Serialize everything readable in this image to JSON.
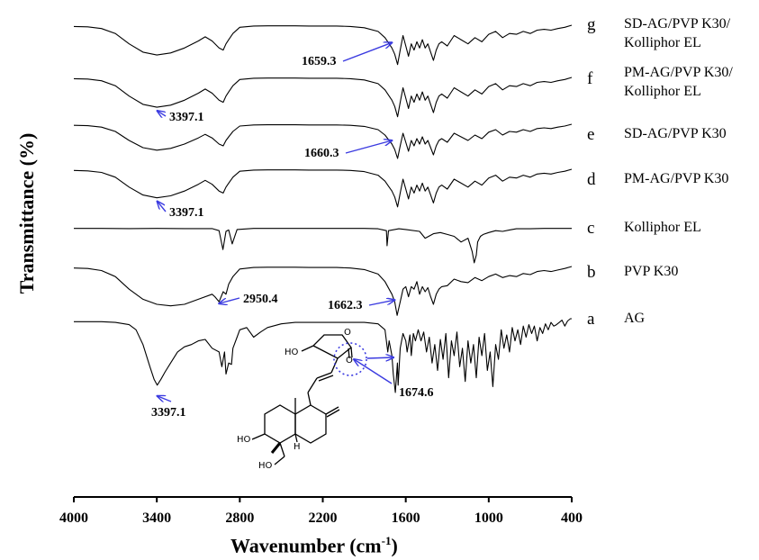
{
  "chart_data": {
    "type": "line",
    "title": "",
    "xlabel_main": "Wavenumber",
    "xlabel_unit": "(cm",
    "xlabel_exp": "-1",
    "xlabel_close": ")",
    "ylabel": "Transmittance (%)",
    "xlim": [
      4000,
      400
    ],
    "xticks": [
      4000,
      3400,
      2800,
      2200,
      1600,
      1000,
      400
    ],
    "series": [
      {
        "letter": "g",
        "name_lines": [
          "SD-AG/PVP K30/",
          "Kolliphor EL"
        ],
        "x": [
          4000,
          3900,
          3800,
          3700,
          3600,
          3500,
          3400,
          3300,
          3200,
          3100,
          3050,
          3000,
          2950,
          2920,
          2900,
          2880,
          2850,
          2800,
          2700,
          2600,
          2500,
          2400,
          2300,
          2200,
          2100,
          2000,
          1900,
          1800,
          1750,
          1720,
          1700,
          1680,
          1659,
          1640,
          1620,
          1600,
          1580,
          1560,
          1540,
          1520,
          1500,
          1480,
          1460,
          1440,
          1420,
          1400,
          1380,
          1360,
          1340,
          1300,
          1250,
          1200,
          1150,
          1100,
          1050,
          1000,
          950,
          900,
          850,
          800,
          750,
          700,
          650,
          600,
          550,
          500,
          450,
          400
        ],
        "y": [
          0.97,
          0.96,
          0.92,
          0.8,
          0.55,
          0.35,
          0.28,
          0.33,
          0.45,
          0.62,
          0.72,
          0.62,
          0.45,
          0.4,
          0.55,
          0.65,
          0.8,
          0.95,
          0.98,
          0.985,
          0.985,
          0.985,
          0.98,
          0.98,
          0.98,
          0.97,
          0.94,
          0.85,
          0.7,
          0.55,
          0.45,
          0.3,
          0.05,
          0.4,
          0.75,
          0.5,
          0.25,
          0.55,
          0.4,
          0.6,
          0.45,
          0.65,
          0.45,
          0.55,
          0.35,
          0.15,
          0.4,
          0.55,
          0.6,
          0.5,
          0.75,
          0.65,
          0.55,
          0.7,
          0.6,
          0.78,
          0.85,
          0.7,
          0.8,
          0.78,
          0.85,
          0.8,
          0.88,
          0.9,
          0.88,
          0.92,
          0.95,
          1.0
        ]
      },
      {
        "letter": "f",
        "name_lines": [
          "PM-AG/PVP K30/",
          "Kolliphor EL"
        ],
        "x": [
          4000,
          3900,
          3800,
          3700,
          3600,
          3500,
          3400,
          3300,
          3200,
          3100,
          3050,
          3000,
          2950,
          2920,
          2900,
          2880,
          2850,
          2800,
          2700,
          2600,
          2500,
          2400,
          2300,
          2200,
          2100,
          2000,
          1900,
          1800,
          1750,
          1720,
          1700,
          1680,
          1659,
          1640,
          1620,
          1600,
          1580,
          1560,
          1540,
          1520,
          1500,
          1480,
          1460,
          1440,
          1420,
          1400,
          1380,
          1360,
          1340,
          1300,
          1250,
          1200,
          1150,
          1100,
          1050,
          1000,
          950,
          900,
          850,
          800,
          750,
          700,
          650,
          600,
          550,
          500,
          450,
          400
        ],
        "y": [
          0.97,
          0.96,
          0.92,
          0.8,
          0.55,
          0.35,
          0.28,
          0.33,
          0.45,
          0.62,
          0.72,
          0.62,
          0.45,
          0.4,
          0.55,
          0.65,
          0.8,
          0.95,
          0.98,
          0.985,
          0.985,
          0.985,
          0.98,
          0.98,
          0.98,
          0.97,
          0.94,
          0.85,
          0.7,
          0.55,
          0.45,
          0.3,
          0.05,
          0.4,
          0.75,
          0.5,
          0.25,
          0.55,
          0.4,
          0.6,
          0.45,
          0.65,
          0.45,
          0.55,
          0.35,
          0.15,
          0.4,
          0.55,
          0.6,
          0.5,
          0.75,
          0.65,
          0.55,
          0.7,
          0.6,
          0.78,
          0.85,
          0.7,
          0.8,
          0.78,
          0.85,
          0.8,
          0.88,
          0.9,
          0.88,
          0.92,
          0.95,
          1.0
        ]
      },
      {
        "letter": "e",
        "name_lines": [
          "SD-AG/PVP K30"
        ],
        "x": [
          4000,
          3900,
          3800,
          3700,
          3600,
          3500,
          3400,
          3300,
          3200,
          3100,
          3050,
          3000,
          2950,
          2920,
          2900,
          2880,
          2850,
          2800,
          2700,
          2600,
          2500,
          2400,
          2300,
          2200,
          2100,
          2000,
          1900,
          1800,
          1750,
          1720,
          1700,
          1680,
          1659,
          1640,
          1620,
          1600,
          1580,
          1560,
          1540,
          1520,
          1500,
          1480,
          1460,
          1440,
          1420,
          1400,
          1380,
          1360,
          1340,
          1300,
          1250,
          1200,
          1150,
          1100,
          1050,
          1000,
          950,
          900,
          850,
          800,
          750,
          700,
          650,
          600,
          550,
          500,
          450,
          400
        ],
        "y": [
          0.97,
          0.96,
          0.92,
          0.8,
          0.55,
          0.35,
          0.28,
          0.33,
          0.45,
          0.62,
          0.72,
          0.62,
          0.45,
          0.4,
          0.55,
          0.65,
          0.8,
          0.95,
          0.98,
          0.985,
          0.985,
          0.985,
          0.98,
          0.98,
          0.98,
          0.97,
          0.94,
          0.85,
          0.7,
          0.55,
          0.45,
          0.3,
          0.05,
          0.4,
          0.75,
          0.5,
          0.25,
          0.55,
          0.4,
          0.6,
          0.45,
          0.65,
          0.45,
          0.55,
          0.35,
          0.15,
          0.4,
          0.55,
          0.6,
          0.5,
          0.75,
          0.65,
          0.55,
          0.7,
          0.6,
          0.78,
          0.85,
          0.7,
          0.8,
          0.78,
          0.85,
          0.8,
          0.88,
          0.9,
          0.88,
          0.92,
          0.95,
          1.0
        ]
      },
      {
        "letter": "d",
        "name_lines": [
          "PM-AG/PVP K30"
        ],
        "x": [
          4000,
          3900,
          3800,
          3700,
          3600,
          3500,
          3400,
          3300,
          3200,
          3100,
          3050,
          3000,
          2950,
          2920,
          2900,
          2880,
          2850,
          2800,
          2700,
          2600,
          2500,
          2400,
          2300,
          2200,
          2100,
          2000,
          1900,
          1800,
          1750,
          1720,
          1700,
          1680,
          1659,
          1640,
          1620,
          1600,
          1580,
          1560,
          1540,
          1520,
          1500,
          1480,
          1460,
          1440,
          1420,
          1400,
          1380,
          1360,
          1340,
          1300,
          1250,
          1200,
          1150,
          1100,
          1050,
          1000,
          950,
          900,
          850,
          800,
          750,
          700,
          650,
          600,
          550,
          500,
          450,
          400
        ],
        "y": [
          0.97,
          0.96,
          0.92,
          0.8,
          0.55,
          0.35,
          0.28,
          0.33,
          0.45,
          0.62,
          0.72,
          0.62,
          0.45,
          0.4,
          0.55,
          0.65,
          0.8,
          0.95,
          0.98,
          0.985,
          0.985,
          0.985,
          0.98,
          0.98,
          0.98,
          0.97,
          0.94,
          0.85,
          0.7,
          0.55,
          0.45,
          0.3,
          0.05,
          0.4,
          0.75,
          0.5,
          0.25,
          0.55,
          0.4,
          0.6,
          0.45,
          0.65,
          0.45,
          0.55,
          0.35,
          0.15,
          0.4,
          0.55,
          0.6,
          0.5,
          0.75,
          0.65,
          0.55,
          0.7,
          0.6,
          0.78,
          0.85,
          0.7,
          0.8,
          0.78,
          0.85,
          0.8,
          0.88,
          0.9,
          0.88,
          0.92,
          0.95,
          1.0
        ]
      },
      {
        "letter": "c",
        "name_lines": [
          "Kolliphor EL"
        ],
        "x": [
          4000,
          3800,
          3600,
          3400,
          3200,
          3000,
          2950,
          2922,
          2900,
          2880,
          2855,
          2820,
          2700,
          2500,
          2300,
          2100,
          1900,
          1800,
          1740,
          1735,
          1725,
          1650,
          1600,
          1500,
          1460,
          1400,
          1350,
          1300,
          1250,
          1200,
          1150,
          1120,
          1105,
          1090,
          1080,
          1060,
          1040,
          1000,
          950,
          900,
          850,
          800,
          700,
          600,
          500,
          400
        ],
        "y": [
          0.96,
          0.96,
          0.955,
          0.96,
          0.955,
          0.955,
          0.9,
          0.4,
          0.88,
          0.92,
          0.55,
          0.93,
          0.96,
          0.96,
          0.96,
          0.96,
          0.96,
          0.95,
          0.9,
          0.5,
          0.9,
          0.95,
          0.93,
          0.88,
          0.7,
          0.82,
          0.85,
          0.8,
          0.75,
          0.6,
          0.7,
          0.35,
          0.05,
          0.25,
          0.6,
          0.75,
          0.8,
          0.85,
          0.9,
          0.88,
          0.92,
          0.95,
          0.95,
          0.96,
          0.96,
          0.96
        ]
      },
      {
        "letter": "b",
        "name_lines": [
          "PVP K30"
        ],
        "x": [
          4000,
          3900,
          3800,
          3700,
          3600,
          3500,
          3400,
          3300,
          3200,
          3100,
          3000,
          2980,
          2950,
          2920,
          2900,
          2880,
          2850,
          2800,
          2700,
          2600,
          2500,
          2400,
          2300,
          2200,
          2100,
          2000,
          1900,
          1800,
          1750,
          1720,
          1700,
          1680,
          1662,
          1640,
          1620,
          1600,
          1580,
          1560,
          1540,
          1520,
          1500,
          1480,
          1460,
          1440,
          1420,
          1400,
          1380,
          1360,
          1340,
          1300,
          1250,
          1200,
          1150,
          1100,
          1050,
          1000,
          950,
          900,
          850,
          800,
          750,
          700,
          650,
          600,
          550,
          500,
          450,
          400
        ],
        "y": [
          0.97,
          0.96,
          0.92,
          0.8,
          0.55,
          0.35,
          0.25,
          0.22,
          0.25,
          0.35,
          0.45,
          0.4,
          0.3,
          0.5,
          0.45,
          0.65,
          0.8,
          0.95,
          0.98,
          0.985,
          0.985,
          0.985,
          0.98,
          0.98,
          0.98,
          0.97,
          0.94,
          0.85,
          0.7,
          0.55,
          0.45,
          0.3,
          0.03,
          0.3,
          0.55,
          0.6,
          0.4,
          0.6,
          0.55,
          0.7,
          0.45,
          0.6,
          0.5,
          0.58,
          0.4,
          0.25,
          0.45,
          0.55,
          0.6,
          0.62,
          0.75,
          0.7,
          0.68,
          0.78,
          0.72,
          0.8,
          0.85,
          0.78,
          0.82,
          0.8,
          0.86,
          0.84,
          0.9,
          0.92,
          0.9,
          0.93,
          0.96,
          1.0
        ]
      },
      {
        "letter": "a",
        "name_lines": [
          "AG"
        ],
        "x": [
          4000,
          3800,
          3700,
          3600,
          3550,
          3500,
          3450,
          3420,
          3397,
          3370,
          3340,
          3300,
          3250,
          3200,
          3150,
          3100,
          3050,
          3000,
          2950,
          2930,
          2910,
          2900,
          2880,
          2860,
          2850,
          2820,
          2800,
          2750,
          2700,
          2650,
          2600,
          2500,
          2400,
          2300,
          2200,
          2100,
          2000,
          1900,
          1800,
          1750,
          1730,
          1720,
          1700,
          1690,
          1675,
          1660,
          1655,
          1640,
          1620,
          1600,
          1590,
          1570,
          1560,
          1545,
          1530,
          1510,
          1490,
          1470,
          1450,
          1430,
          1410,
          1390,
          1370,
          1350,
          1330,
          1310,
          1290,
          1270,
          1250,
          1230,
          1210,
          1190,
          1170,
          1150,
          1130,
          1110,
          1090,
          1070,
          1050,
          1030,
          1010,
          990,
          970,
          950,
          930,
          910,
          890,
          870,
          850,
          830,
          810,
          790,
          770,
          750,
          730,
          710,
          690,
          670,
          650,
          630,
          610,
          590,
          570,
          550,
          530,
          510,
          490,
          470,
          450,
          430,
          410,
          400
        ],
        "y": [
          0.96,
          0.96,
          0.95,
          0.92,
          0.85,
          0.65,
          0.35,
          0.18,
          0.1,
          0.18,
          0.28,
          0.4,
          0.55,
          0.62,
          0.65,
          0.7,
          0.72,
          0.6,
          0.55,
          0.35,
          0.55,
          0.25,
          0.4,
          0.38,
          0.6,
          0.75,
          0.85,
          0.88,
          0.75,
          0.82,
          0.88,
          0.93,
          0.95,
          0.95,
          0.95,
          0.95,
          0.95,
          0.95,
          0.93,
          0.85,
          0.55,
          0.7,
          0.5,
          0.25,
          0.0,
          0.4,
          0.1,
          0.6,
          0.8,
          0.7,
          0.55,
          0.78,
          0.5,
          0.8,
          0.7,
          0.85,
          0.7,
          0.82,
          0.55,
          0.75,
          0.4,
          0.65,
          0.3,
          0.72,
          0.45,
          0.8,
          0.2,
          0.7,
          0.5,
          0.82,
          0.35,
          0.6,
          0.15,
          0.7,
          0.4,
          0.65,
          0.2,
          0.75,
          0.5,
          0.8,
          0.3,
          0.55,
          0.08,
          0.65,
          0.45,
          0.85,
          0.6,
          0.78,
          0.55,
          0.88,
          0.7,
          0.85,
          0.65,
          0.9,
          0.75,
          0.92,
          0.8,
          0.9,
          0.7,
          0.88,
          0.8,
          0.93,
          0.85,
          0.95,
          0.9,
          0.92,
          0.95,
          0.98,
          0.9,
          0.97,
          1.0,
          1.0
        ]
      }
    ],
    "annotations": [
      {
        "text": "1659.3",
        "series": "g",
        "x": 1659.3
      },
      {
        "text": "3397.1",
        "series": "f",
        "x": 3397.1
      },
      {
        "text": "1660.3",
        "series": "e",
        "x": 1660.3
      },
      {
        "text": "3397.1",
        "series": "d",
        "x": 3397.1
      },
      {
        "text": "2950.4",
        "series": "b",
        "x": 2950.4
      },
      {
        "text": "1662.3",
        "series": "b",
        "x": 1662.3
      },
      {
        "text": "3397.1",
        "series": "a",
        "x": 3397.1
      },
      {
        "text": "1674.6",
        "series": "a",
        "x": 1674.6
      }
    ],
    "structure_labels": {
      "hydroxyl_1": "HO",
      "hydroxyl_2": "HO",
      "hydroxyl_3": "HO",
      "hydrogen": "H",
      "carbonyl_oxygen": "O",
      "ring_oxygen": "O"
    }
  }
}
